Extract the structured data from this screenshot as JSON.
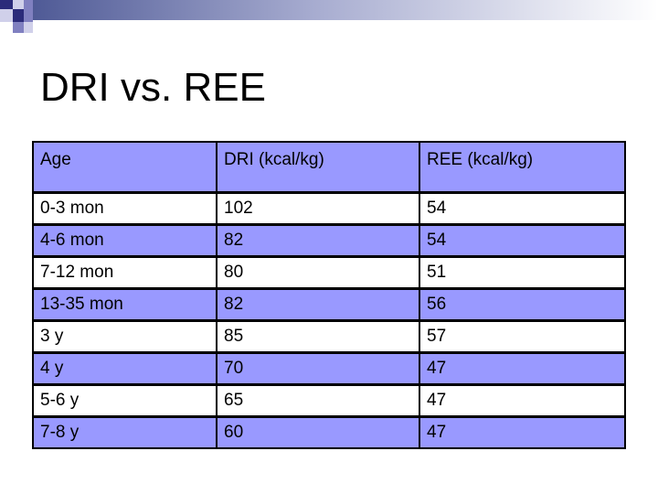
{
  "slide": {
    "title": "DRI vs. REE"
  },
  "table": {
    "headers": [
      "Age",
      "DRI (kcal/kg)",
      "REE (kcal/kg)"
    ],
    "rows": [
      {
        "age": "0-3 mon",
        "dri": "102",
        "ree": "54",
        "highlight": false
      },
      {
        "age": "4-6 mon",
        "dri": "82",
        "ree": "54",
        "highlight": true
      },
      {
        "age": "7-12 mon",
        "dri": "80",
        "ree": "51",
        "highlight": false
      },
      {
        "age": "13-35 mon",
        "dri": "82",
        "ree": "56",
        "highlight": true
      },
      {
        "age": "3 y",
        "dri": "85",
        "ree": "57",
        "highlight": false
      },
      {
        "age": "4 y",
        "dri": "70",
        "ree": "47",
        "highlight": true
      },
      {
        "age": "5-6 y",
        "dri": "65",
        "ree": "47",
        "highlight": false
      },
      {
        "age": "7-8 y",
        "dri": "60",
        "ree": "47",
        "highlight": true
      }
    ]
  },
  "colors": {
    "header_fill": "#9999ff",
    "accent_dark": "#2b2b7a",
    "accent_mid": "#8080c0",
    "accent_light": "#c8c8e8"
  }
}
